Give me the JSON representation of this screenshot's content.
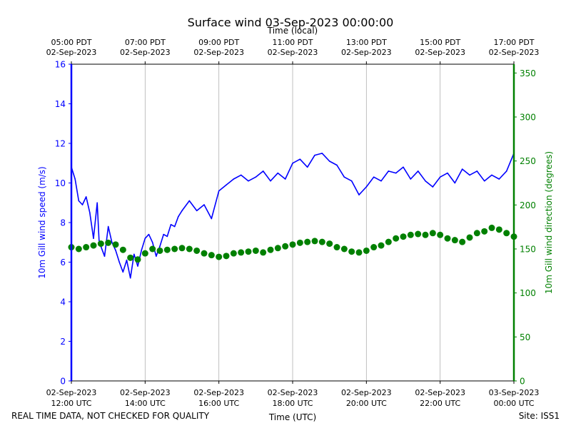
{
  "chart_data": {
    "type": "line",
    "title": "Surface wind 03-Sep-2023 00:00:00",
    "top_axis_label": "Time (local)",
    "xlabel": "Time (UTC)",
    "ylabel_left": "10m Gill wind speed (m/s)",
    "ylabel_right": "10m Gill wind direction (degrees)",
    "left_color": "#0000ff",
    "right_color": "#008000",
    "footer_left": "REAL TIME DATA, NOT CHECKED FOR QUALITY",
    "footer_right": "Site: ISS1",
    "x_range_hours_utc": [
      12,
      24
    ],
    "ylim_left": [
      0,
      16
    ],
    "ylim_right": [
      0,
      360
    ],
    "grid": "vertical",
    "bottom_ticks": [
      {
        "hour": 12,
        "date": "02-Sep-2023",
        "time": "12:00 UTC"
      },
      {
        "hour": 14,
        "date": "02-Sep-2023",
        "time": "14:00 UTC"
      },
      {
        "hour": 16,
        "date": "02-Sep-2023",
        "time": "16:00 UTC"
      },
      {
        "hour": 18,
        "date": "02-Sep-2023",
        "time": "18:00 UTC"
      },
      {
        "hour": 20,
        "date": "02-Sep-2023",
        "time": "20:00 UTC"
      },
      {
        "hour": 22,
        "date": "02-Sep-2023",
        "time": "22:00 UTC"
      },
      {
        "hour": 24,
        "date": "03-Sep-2023",
        "time": "00:00 UTC"
      }
    ],
    "top_ticks": [
      {
        "hour": 12,
        "time": "05:00 PDT",
        "date": "02-Sep-2023"
      },
      {
        "hour": 14,
        "time": "07:00 PDT",
        "date": "02-Sep-2023"
      },
      {
        "hour": 16,
        "time": "09:00 PDT",
        "date": "02-Sep-2023"
      },
      {
        "hour": 18,
        "time": "11:00 PDT",
        "date": "02-Sep-2023"
      },
      {
        "hour": 20,
        "time": "13:00 PDT",
        "date": "02-Sep-2023"
      },
      {
        "hour": 22,
        "time": "15:00 PDT",
        "date": "02-Sep-2023"
      },
      {
        "hour": 24,
        "time": "17:00 PDT",
        "date": "02-Sep-2023"
      }
    ],
    "left_ticks": [
      0,
      2,
      4,
      6,
      8,
      10,
      12,
      14,
      16
    ],
    "right_ticks": [
      0,
      50,
      100,
      150,
      200,
      250,
      300,
      350
    ],
    "series": [
      {
        "name": "10m Gill wind speed (m/s)",
        "axis": "left",
        "style": "line",
        "x": [
          12.0,
          12.1,
          12.2,
          12.3,
          12.4,
          12.5,
          12.6,
          12.7,
          12.75,
          12.8,
          12.9,
          13.0,
          13.1,
          13.2,
          13.3,
          13.4,
          13.5,
          13.6,
          13.7,
          13.8,
          13.9,
          14.0,
          14.1,
          14.2,
          14.3,
          14.4,
          14.5,
          14.6,
          14.7,
          14.8,
          14.9,
          15.0,
          15.2,
          15.4,
          15.6,
          15.8,
          16.0,
          16.2,
          16.4,
          16.6,
          16.8,
          17.0,
          17.2,
          17.4,
          17.6,
          17.8,
          18.0,
          18.2,
          18.4,
          18.6,
          18.8,
          19.0,
          19.2,
          19.4,
          19.6,
          19.8,
          20.0,
          20.2,
          20.4,
          20.6,
          20.8,
          21.0,
          21.2,
          21.4,
          21.6,
          21.8,
          22.0,
          22.2,
          22.4,
          22.6,
          22.8,
          23.0,
          23.2,
          23.4,
          23.6,
          23.8,
          24.0
        ],
        "y": [
          10.8,
          10.2,
          9.1,
          8.9,
          9.3,
          8.5,
          7.2,
          9.0,
          7.1,
          6.8,
          6.3,
          7.8,
          7.0,
          6.6,
          6.0,
          5.5,
          6.1,
          5.2,
          6.4,
          5.8,
          6.6,
          7.2,
          7.4,
          7.0,
          6.3,
          6.8,
          7.4,
          7.3,
          7.9,
          7.8,
          8.3,
          8.6,
          9.1,
          8.6,
          8.9,
          8.2,
          9.6,
          9.9,
          10.2,
          10.4,
          10.1,
          10.3,
          10.6,
          10.1,
          10.5,
          10.2,
          11.0,
          11.2,
          10.8,
          11.4,
          11.5,
          11.1,
          10.9,
          10.3,
          10.1,
          9.4,
          9.8,
          10.3,
          10.1,
          10.6,
          10.5,
          10.8,
          10.2,
          10.6,
          10.1,
          9.8,
          10.3,
          10.5,
          10.0,
          10.7,
          10.4,
          10.6,
          10.1,
          10.4,
          10.2,
          10.6,
          11.5
        ]
      },
      {
        "name": "10m Gill wind direction (degrees)",
        "axis": "right",
        "style": "markers",
        "x": [
          12.0,
          12.2,
          12.4,
          12.6,
          12.8,
          13.0,
          13.2,
          13.4,
          13.6,
          13.8,
          14.0,
          14.2,
          14.4,
          14.6,
          14.8,
          15.0,
          15.2,
          15.4,
          15.6,
          15.8,
          16.0,
          16.2,
          16.4,
          16.6,
          16.8,
          17.0,
          17.2,
          17.4,
          17.6,
          17.8,
          18.0,
          18.2,
          18.4,
          18.6,
          18.8,
          19.0,
          19.2,
          19.4,
          19.6,
          19.8,
          20.0,
          20.2,
          20.4,
          20.6,
          20.8,
          21.0,
          21.2,
          21.4,
          21.6,
          21.8,
          22.0,
          22.2,
          22.4,
          22.6,
          22.8,
          23.0,
          23.2,
          23.4,
          23.6,
          23.8,
          24.0
        ],
        "y": [
          152,
          150,
          152,
          154,
          156,
          157,
          155,
          149,
          140,
          138,
          145,
          150,
          148,
          149,
          150,
          151,
          150,
          148,
          145,
          143,
          141,
          142,
          145,
          146,
          147,
          148,
          146,
          149,
          151,
          153,
          155,
          157,
          158,
          159,
          158,
          156,
          152,
          150,
          147,
          146,
          148,
          152,
          154,
          158,
          162,
          164,
          166,
          167,
          166,
          168,
          166,
          162,
          160,
          158,
          163,
          168,
          170,
          174,
          172,
          168,
          164
        ]
      }
    ]
  }
}
